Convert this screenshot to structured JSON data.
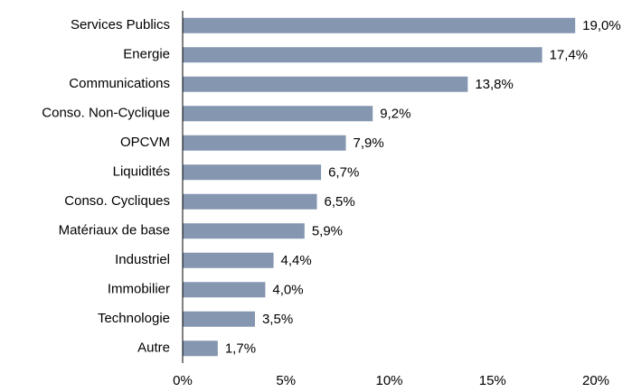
{
  "chart_data": {
    "type": "barh",
    "categories": [
      "Services Publics",
      "Energie",
      "Communications",
      "Conso. Non-Cyclique",
      "OPCVM",
      "Liquidités",
      "Conso. Cycliques",
      "Matériaux de base",
      "Industriel",
      "Immobilier",
      "Technologie",
      "Autre"
    ],
    "values": [
      19.0,
      17.4,
      13.8,
      9.2,
      7.9,
      6.7,
      6.5,
      5.9,
      4.4,
      4.0,
      3.5,
      1.7
    ],
    "value_labels": [
      "19,0%",
      "17,4%",
      "13,8%",
      "9,2%",
      "7,9%",
      "6,7%",
      "6,5%",
      "5,9%",
      "4,4%",
      "4,0%",
      "3,5%",
      "1,7%"
    ],
    "color": "#8496b0",
    "xlim": [
      0,
      20
    ],
    "xticks": [
      {
        "value": 0,
        "label": "0%"
      },
      {
        "value": 5,
        "label": "5%"
      },
      {
        "value": 10,
        "label": "10%"
      },
      {
        "value": 15,
        "label": "15%"
      },
      {
        "value": 20,
        "label": "20%"
      }
    ],
    "grid": false
  }
}
